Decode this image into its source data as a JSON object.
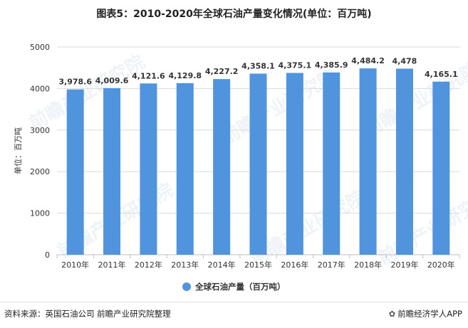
{
  "title": "图表5：2010-2020年全球石油产量变化情况(单位：百万吨)",
  "source": "资料来源：英国石油公司 前瞻产业研究院整理",
  "brand": "前瞻经济学人APP",
  "watermark": "前瞻产业研究院",
  "colors": {
    "bar": "#4f94dc",
    "grid": "#d9d9d9",
    "axis": "#bfbfbf"
  },
  "chart_data": {
    "type": "bar",
    "categories": [
      "2010年",
      "2011年",
      "2012年",
      "2013年",
      "2014年",
      "2015年",
      "2016年",
      "2017年",
      "2018年",
      "2019年",
      "2020年"
    ],
    "series": [
      {
        "name": "全球石油产量（百万吨）",
        "values": [
          3978.6,
          4009.6,
          4121.6,
          4129.8,
          4227.2,
          4358.1,
          4375.1,
          4385.9,
          4484.2,
          4478,
          4165.1
        ]
      }
    ],
    "value_labels": [
      "3,978.6",
      "4,009.6",
      "4,121.6",
      "4,129.8",
      "4,227.2",
      "4,358.1",
      "4,375.1",
      "4,385.9",
      "4,484.2",
      "4,478",
      "4,165.1"
    ],
    "ylabel": "单位：百万吨",
    "ylim": [
      0,
      5000
    ],
    "yticks": [
      0,
      1000,
      2000,
      3000,
      4000,
      5000
    ],
    "grid": true,
    "legend": "bottom"
  }
}
